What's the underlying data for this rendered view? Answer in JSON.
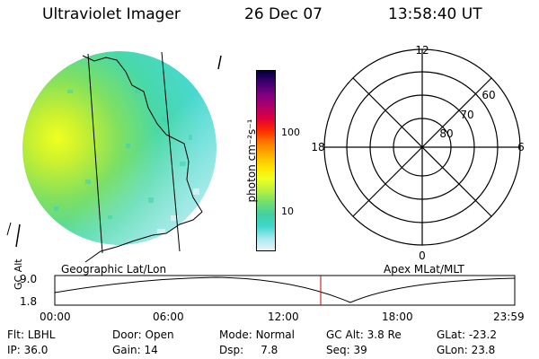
{
  "header": {
    "title": "Ultraviolet Imager",
    "date": "26 Dec 07",
    "time": "13:58:40 UT"
  },
  "colorbar": {
    "label": "photon cm⁻²s⁻¹",
    "ticks": [
      "100",
      "10"
    ],
    "colors": [
      "#000040",
      "#400070",
      "#800080",
      "#b0006a",
      "#e0003a",
      "#ff2a00",
      "#ff7a00",
      "#ffb000",
      "#ffe000",
      "#f0ff20",
      "#b8f040",
      "#70e070",
      "#40d0a0",
      "#40d8d0",
      "#a8e8f0",
      "#e8f4f8"
    ]
  },
  "polar_plot": {
    "mlt_labels": {
      "top": "12",
      "left": "18",
      "right": "6",
      "bottom": "0"
    },
    "lat_labels": [
      "60",
      "70",
      "80"
    ]
  },
  "timeline": {
    "left_title": "Geographic Lat/Lon",
    "right_title": "Apex MLat/MLT",
    "axis_label": "GC Alt",
    "y_ticks": [
      "9.0",
      "1.8"
    ],
    "x_ticks": [
      "00:00",
      "06:00",
      "12:00",
      "18:00",
      "23:59"
    ],
    "marker_time": "13:58:40"
  },
  "info": {
    "row1": [
      {
        "label": "Flt:",
        "value": "LBHL"
      },
      {
        "label": "Door:",
        "value": "Open"
      },
      {
        "label": "Mode:",
        "value": "Normal"
      },
      {
        "label": "GC Alt:",
        "value": "3.8 Re"
      },
      {
        "label": "GLat:",
        "value": "-23.2"
      }
    ],
    "row2": [
      {
        "label": "IP:",
        "value": "36.0"
      },
      {
        "label": "Gain:",
        "value": "14"
      },
      {
        "label": "Dsp:",
        "value": "7.8"
      },
      {
        "label": "Seq:",
        "value": "39"
      },
      {
        "label": "GLon:",
        "value": "23.8"
      }
    ]
  }
}
